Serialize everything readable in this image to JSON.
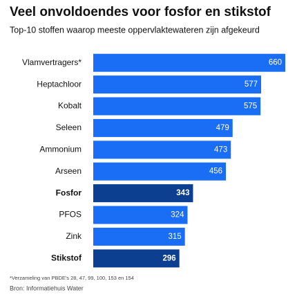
{
  "chart_data": {
    "type": "bar",
    "orientation": "horizontal",
    "title": "Veel onvoldoendes voor fosfor en stikstof",
    "subtitle": "Top-10 stoffen waarop meeste oppervlaktewateren zijn afgekeurd",
    "categories": [
      "Vlamvertragers*",
      "Heptachloor",
      "Kobalt",
      "Seleen",
      "Ammonium",
      "Arseen",
      "Fosfor",
      "PFOS",
      "Zink",
      "Stikstof"
    ],
    "values": [
      660,
      577,
      575,
      479,
      473,
      456,
      343,
      324,
      315,
      296
    ],
    "color": "#1a6ef5",
    "colors": [
      "#1a6ef5",
      "#1a6ef5",
      "#1a6ef5",
      "#1a6ef5",
      "#1a6ef5",
      "#1a6ef5",
      "#0d3f91",
      "#1a6ef5",
      "#1a6ef5",
      "#0d3f91"
    ],
    "footnote": "*Verzameling van PBDE's 28, 47, 99, 100, 153 en 154",
    "source": "Bron: Informatiehuis Water"
  }
}
